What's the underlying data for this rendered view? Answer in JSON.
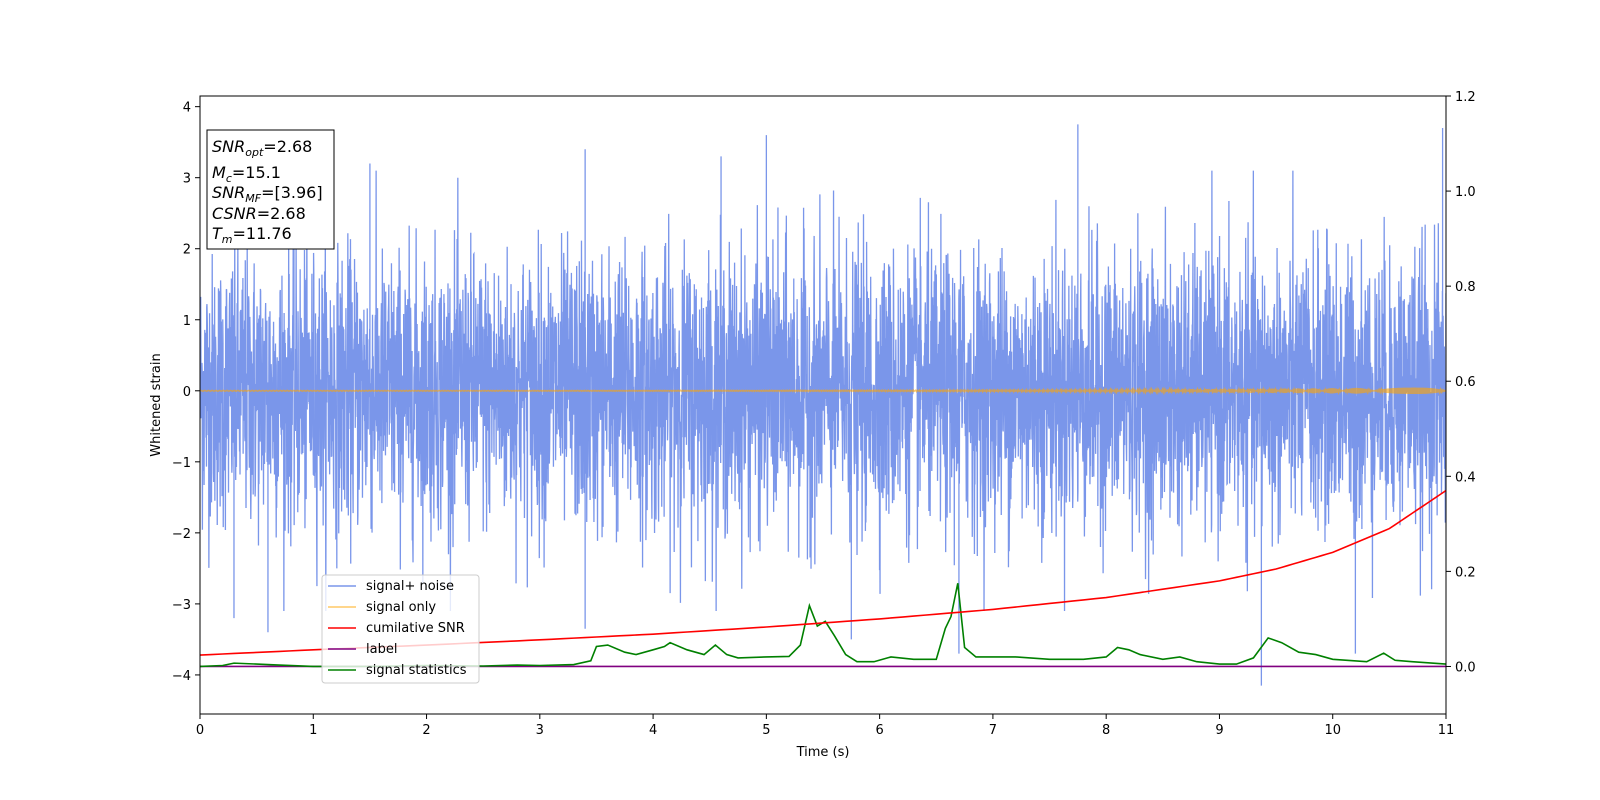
{
  "chart_data": {
    "type": "line",
    "xlabel": "Time (s)",
    "ylabel": "Whitened strain",
    "xlim": [
      0,
      11
    ],
    "ylim_left": [
      -4.55,
      4.15
    ],
    "ylim_right": [
      -0.1,
      1.2
    ],
    "x_ticks": [
      "0",
      "1",
      "2",
      "3",
      "4",
      "5",
      "6",
      "7",
      "8",
      "9",
      "10",
      "11"
    ],
    "y_left_ticks": [
      "−4",
      "−3",
      "−2",
      "−1",
      "0",
      "1",
      "2",
      "3",
      "4"
    ],
    "y_right_ticks": [
      "0.0",
      "0.2",
      "0.4",
      "0.6",
      "0.8",
      "1.0",
      "1.2"
    ],
    "grid": false,
    "legend_position": "lower-left",
    "info_box": {
      "snr_opt": "=2.68",
      "mc": "=15.1",
      "snr_mf": "=[3.96]",
      "csnr": "=2.68",
      "tm": "=11.76"
    },
    "series": [
      {
        "name": "signal+ noise",
        "axis": "left",
        "color": "#4169e1",
        "alpha": 0.7,
        "description": "dense whitened noise, approx amplitude ±2.5 with spikes to ±3.8; min spike −4.15 at x≈9.37",
        "spikes": [
          [
            1.5,
            3.2
          ],
          [
            3.4,
            3.4
          ],
          [
            4.6,
            3.3
          ],
          [
            5.0,
            3.6
          ],
          [
            7.75,
            3.75
          ],
          [
            10.97,
            3.7
          ],
          [
            0.3,
            -3.2
          ],
          [
            0.6,
            -3.4
          ],
          [
            3.4,
            -3.35
          ],
          [
            5.75,
            -3.5
          ],
          [
            6.7,
            -3.7
          ],
          [
            9.37,
            -4.15
          ],
          [
            10.2,
            -3.7
          ]
        ]
      },
      {
        "name": "signal only",
        "axis": "left",
        "color": "#ffa500",
        "alpha": 0.6,
        "description": "chirp near zero, amplitude growing to ~0.05 at the end"
      },
      {
        "name": "cumilative SNR",
        "axis": "right",
        "color": "#ff0000",
        "x": [
          0,
          1,
          2,
          3,
          4,
          5,
          6,
          7,
          8,
          9,
          9.5,
          10,
          10.5,
          11
        ],
        "y": [
          0.024,
          0.035,
          0.045,
          0.056,
          0.068,
          0.083,
          0.1,
          0.12,
          0.145,
          0.18,
          0.205,
          0.24,
          0.29,
          0.37
        ]
      },
      {
        "name": "label",
        "axis": "right",
        "color": "#800080",
        "x": [
          0,
          11
        ],
        "y": [
          0.0,
          0.0
        ]
      },
      {
        "name": "signal statistics",
        "axis": "right",
        "color": "#008000",
        "x": [
          0,
          0.2,
          0.3,
          0.5,
          0.7,
          1.0,
          1.5,
          2.0,
          2.5,
          2.8,
          3.0,
          3.3,
          3.45,
          3.5,
          3.6,
          3.75,
          3.85,
          4.0,
          4.1,
          4.15,
          4.3,
          4.45,
          4.55,
          4.65,
          4.75,
          5.0,
          5.2,
          5.3,
          5.38,
          5.45,
          5.52,
          5.6,
          5.7,
          5.8,
          5.95,
          6.1,
          6.3,
          6.5,
          6.58,
          6.63,
          6.69,
          6.75,
          6.85,
          7.0,
          7.2,
          7.5,
          7.8,
          8.0,
          8.1,
          8.2,
          8.3,
          8.5,
          8.65,
          8.8,
          9.0,
          9.15,
          9.3,
          9.43,
          9.55,
          9.7,
          9.85,
          10.0,
          10.3,
          10.45,
          10.55,
          10.7,
          11.0
        ],
        "y": [
          0.0,
          0.002,
          0.007,
          0.005,
          0.003,
          0.0,
          0.0,
          0.002,
          0.001,
          0.003,
          0.002,
          0.004,
          0.012,
          0.042,
          0.045,
          0.03,
          0.025,
          0.035,
          0.042,
          0.05,
          0.035,
          0.025,
          0.045,
          0.025,
          0.018,
          0.02,
          0.021,
          0.045,
          0.128,
          0.085,
          0.095,
          0.065,
          0.025,
          0.01,
          0.01,
          0.02,
          0.015,
          0.015,
          0.08,
          0.105,
          0.175,
          0.04,
          0.02,
          0.02,
          0.02,
          0.015,
          0.015,
          0.02,
          0.04,
          0.035,
          0.025,
          0.015,
          0.02,
          0.01,
          0.005,
          0.005,
          0.018,
          0.06,
          0.05,
          0.03,
          0.025,
          0.015,
          0.01,
          0.028,
          0.013,
          0.01,
          0.005
        ]
      }
    ]
  }
}
